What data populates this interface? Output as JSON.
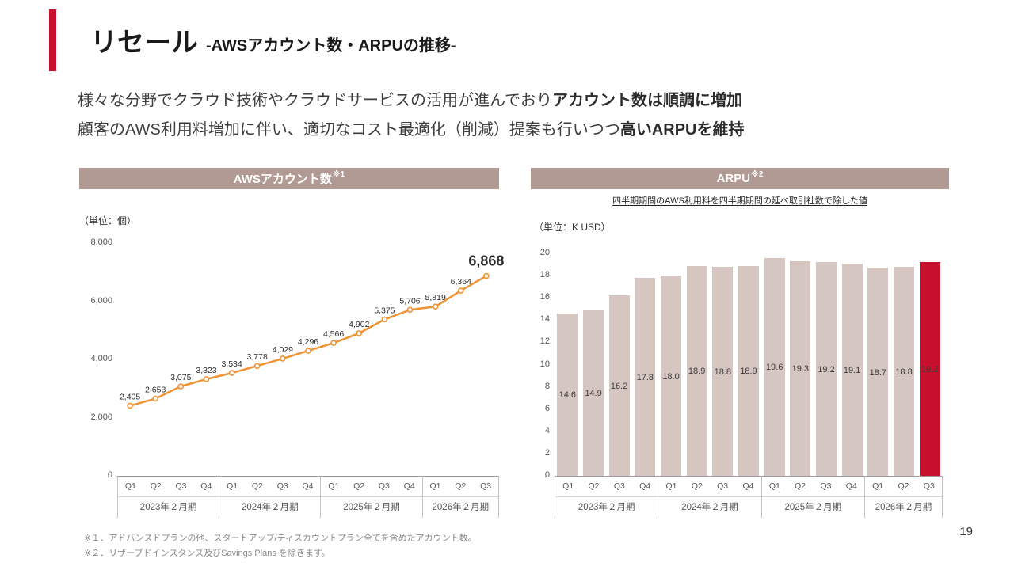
{
  "colors": {
    "accent_red": "#c8102e",
    "panel_header_bg": "#b29a94",
    "bar_fill": "#d6c6c1",
    "line_stroke": "#ef9335"
  },
  "header": {
    "title": "リセール",
    "subtitle": "-AWSアカウント数・ARPUの推移-"
  },
  "intro": {
    "line1": {
      "normal": "様々な分野でクラウド技術やクラウドサービスの活用が進んでおり",
      "bold": "アカウント数は順調に増加"
    },
    "line2": {
      "normal": "顧客のAWS利用料増加に伴い、適切なコスト最適化（削減）提案も行いつつ",
      "bold": "高いARPUを維持"
    }
  },
  "footnotes": [
    "※１．アドバンスドプランの他、スタートアップ/ディスカウントプラン全てを含めたアカウント数。",
    "※２．リザーブドインスタンス及びSavings Plans を除きます。"
  ],
  "page_number": "19",
  "chart_data": [
    {
      "type": "line",
      "title": "AWSアカウント数",
      "title_note": "※1",
      "unit": "（単位：個）",
      "ylim": [
        0,
        8000
      ],
      "ytick_labels": [
        "8,000",
        "6,000",
        "4,000",
        "2,000",
        "0"
      ],
      "values": [
        2405,
        2653,
        3075,
        3323,
        3534,
        3778,
        4029,
        4296,
        4566,
        4902,
        5375,
        5706,
        5819,
        6364,
        6868
      ],
      "labels": [
        "2,405",
        "2,653",
        "3,075",
        "3,323",
        "3,534",
        "3,778",
        "4,029",
        "4,296",
        "4,566",
        "4,902",
        "5,375",
        "5,706",
        "5,819",
        "6,364",
        "6,868"
      ],
      "highlight_last": true,
      "grid": false,
      "x_groups": [
        {
          "label": "2023年２月期",
          "quarters": [
            "Q1",
            "Q2",
            "Q3",
            "Q4"
          ]
        },
        {
          "label": "2024年２月期",
          "quarters": [
            "Q1",
            "Q2",
            "Q3",
            "Q4"
          ]
        },
        {
          "label": "2025年２月期",
          "quarters": [
            "Q1",
            "Q2",
            "Q3",
            "Q4"
          ]
        },
        {
          "label": "2026年２月期",
          "quarters": [
            "Q1",
            "Q2",
            "Q3"
          ]
        }
      ]
    },
    {
      "type": "bar",
      "title": "ARPU",
      "title_note": "※2",
      "subtitle": "四半期期間のAWS利用料を四半期期間の延べ取引社数で除した値",
      "unit": "（単位：K USD）",
      "ylim": [
        0,
        20
      ],
      "ytick_labels": [
        "20",
        "18",
        "16",
        "14",
        "12",
        "10",
        "8",
        "6",
        "4",
        "2",
        "0"
      ],
      "values": [
        14.6,
        14.9,
        16.2,
        17.8,
        18.0,
        18.9,
        18.8,
        18.9,
        19.6,
        19.3,
        19.2,
        19.1,
        18.7,
        18.8,
        19.2
      ],
      "labels": [
        "14.6",
        "14.9",
        "16.2",
        "17.8",
        "18.0",
        "18.9",
        "18.8",
        "18.9",
        "19.6",
        "19.3",
        "19.2",
        "19.1",
        "18.7",
        "18.8",
        "19.2"
      ],
      "highlight_last": true,
      "grid": false,
      "x_groups": [
        {
          "label": "2023年２月期",
          "quarters": [
            "Q1",
            "Q2",
            "Q3",
            "Q4"
          ]
        },
        {
          "label": "2024年２月期",
          "quarters": [
            "Q1",
            "Q2",
            "Q3",
            "Q4"
          ]
        },
        {
          "label": "2025年２月期",
          "quarters": [
            "Q1",
            "Q2",
            "Q3",
            "Q4"
          ]
        },
        {
          "label": "2026年２月期",
          "quarters": [
            "Q1",
            "Q2",
            "Q3"
          ]
        }
      ]
    }
  ]
}
